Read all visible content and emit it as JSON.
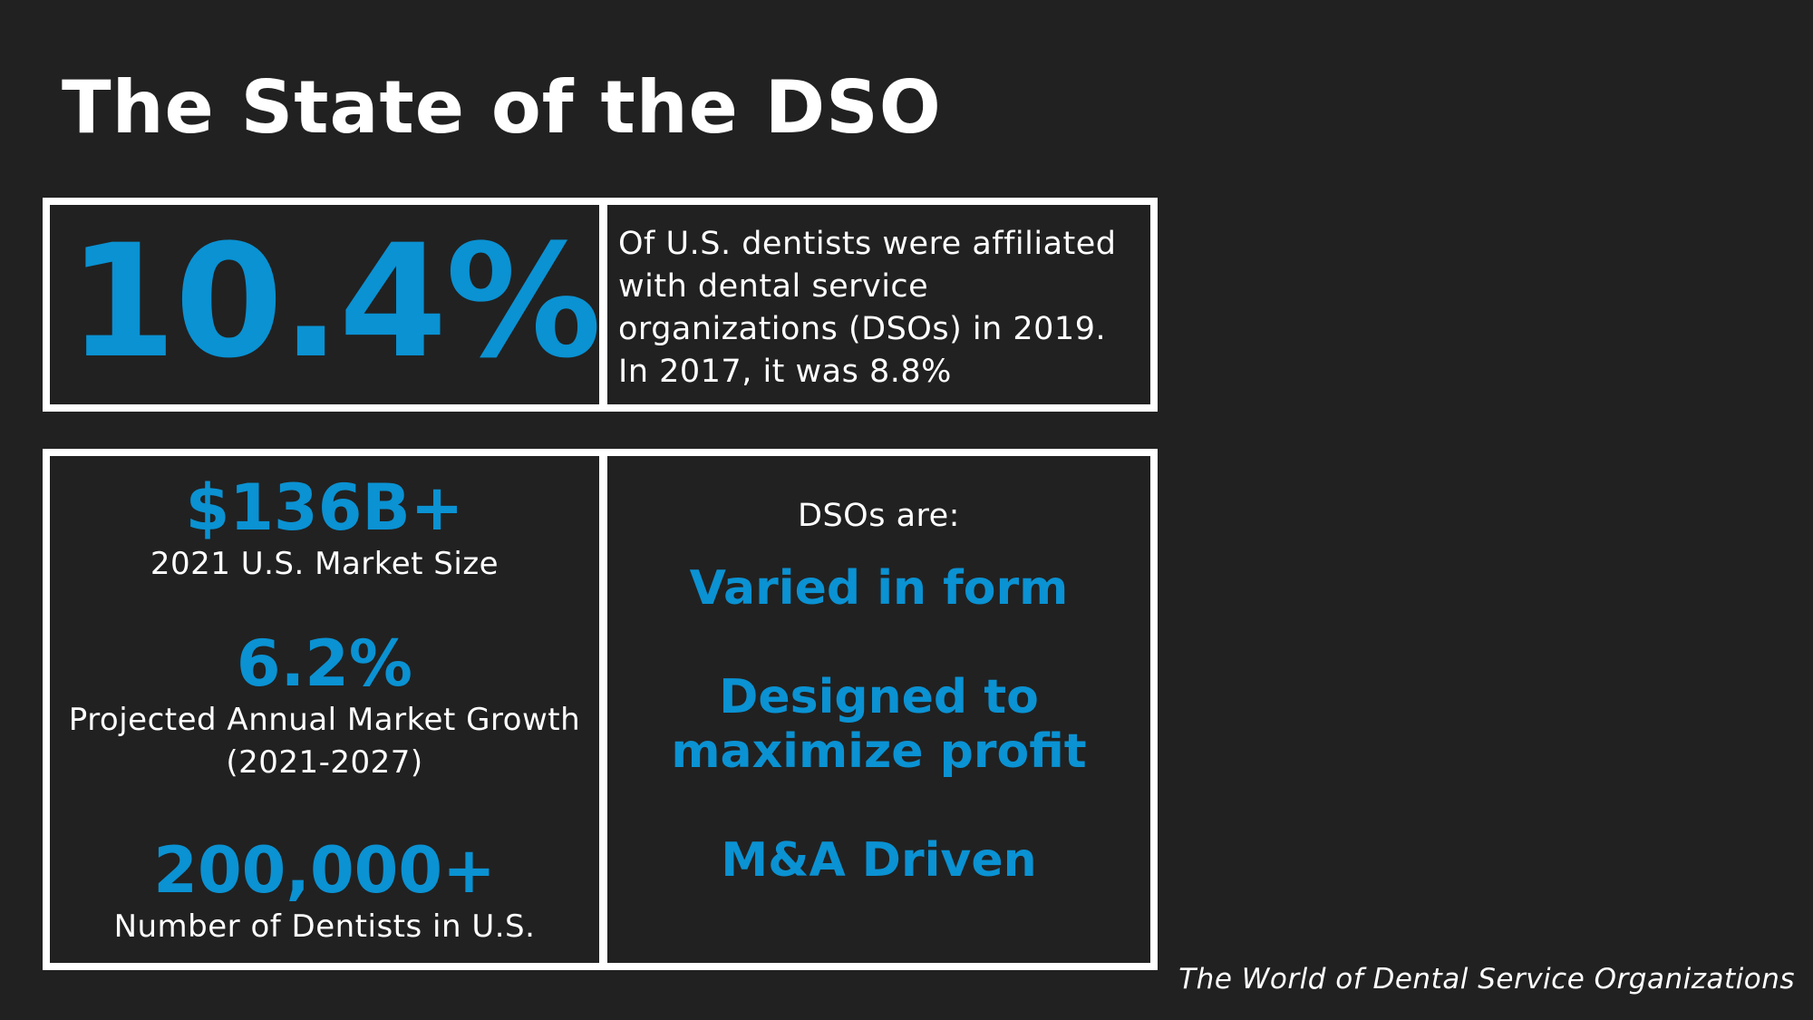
{
  "title": "The State of the DSO",
  "colors": {
    "background": "#212121",
    "accent": "#0a92d3",
    "text": "#ffffff"
  },
  "top_panel": {
    "big_stat": "10.4%",
    "description": "Of U.S. dentists were affiliated with dental service organizations (DSOs) in 2019. In 2017, it was 8.8%"
  },
  "stats": [
    {
      "value": "$136B+",
      "label": "2021 U.S. Market Size"
    },
    {
      "value": "6.2%",
      "label": "Projected Annual Market Growth (2021-2027)"
    },
    {
      "value": "200,000+",
      "label": "Number of Dentists in U.S."
    }
  ],
  "dsos": {
    "intro": "DSOs are:",
    "points": [
      "Varied in form",
      "Designed to maximize profit",
      "M&A Driven"
    ]
  },
  "footer": "The World of Dental Service Organizations"
}
